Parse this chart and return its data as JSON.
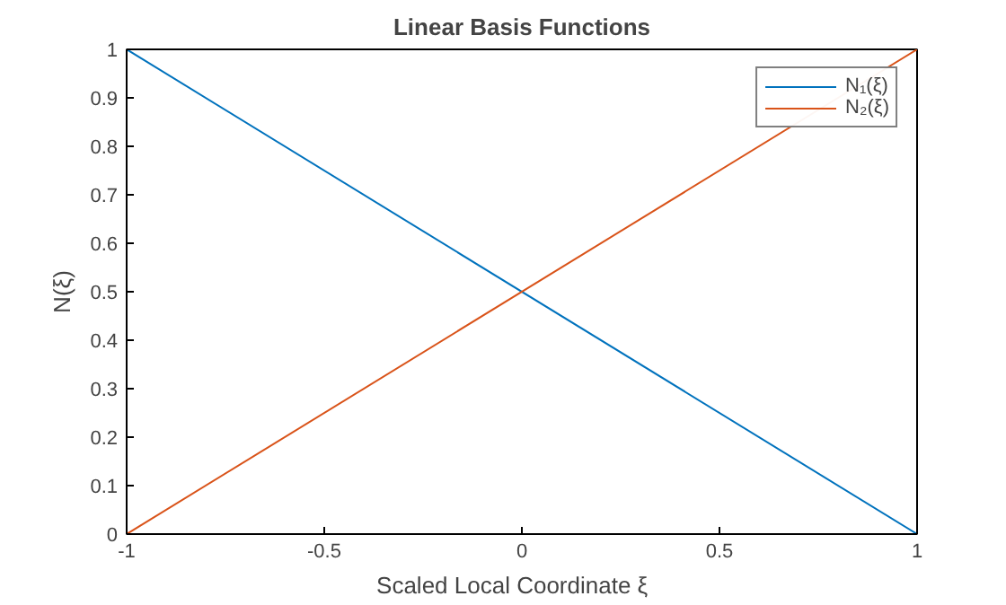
{
  "chart_data": {
    "type": "line",
    "title": "Linear Basis Functions",
    "xlabel": "Scaled  Local  Coordinate  ξ",
    "ylabel": "N(ξ)",
    "x": [
      -1,
      1
    ],
    "series": [
      {
        "name": "N₁(ξ)",
        "color": "#0072bd",
        "values": [
          1,
          0
        ]
      },
      {
        "name": "N₂(ξ)",
        "color": "#d95319",
        "values": [
          0,
          1
        ]
      }
    ],
    "xlim": [
      -1,
      1
    ],
    "ylim": [
      0,
      1
    ],
    "xticks": [
      -1,
      -0.5,
      0,
      0.5,
      1
    ],
    "yticks": [
      0,
      0.1,
      0.2,
      0.3,
      0.4,
      0.5,
      0.6,
      0.7,
      0.8,
      0.9,
      1
    ],
    "grid": false,
    "legend": "top right",
    "line_style": "solid",
    "marker": "none"
  }
}
